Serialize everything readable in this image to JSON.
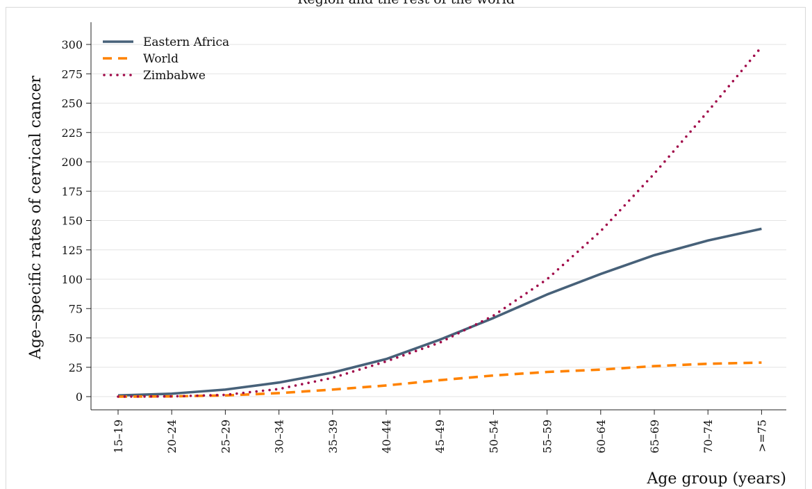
{
  "chart_data": {
    "type": "line",
    "title": "Region and the rest of the world",
    "xlabel": "Age group (years)",
    "ylabel": "Age–specific rates of cervical cancer",
    "categories": [
      "15–19",
      "20–24",
      "25–29",
      "30–34",
      "35–39",
      "40–44",
      "45–49",
      "50–54",
      "55–59",
      "60–64",
      "65–69",
      "70–74",
      ">=75"
    ],
    "ylim": [
      0,
      300
    ],
    "yticks": [
      "0",
      "25",
      "50",
      "75",
      "100",
      "125",
      "150",
      "175",
      "200",
      "225",
      "250",
      "275",
      "300"
    ],
    "grid": true,
    "legend_position": "top-left",
    "series": [
      {
        "name": "Eastern Africa",
        "color": "#476179",
        "style": "solid",
        "values": [
          1,
          2.5,
          6,
          12,
          20.5,
          32,
          48.5,
          67,
          87,
          104.5,
          120.5,
          133,
          143
        ]
      },
      {
        "name": "World",
        "color": "#ff8200",
        "style": "dashed",
        "values": [
          0,
          0.2,
          1,
          3,
          6,
          9.5,
          14,
          18,
          21,
          23,
          26,
          28,
          29
        ]
      },
      {
        "name": "Zimbabwe",
        "color": "#a10b4a",
        "style": "dotted",
        "values": [
          0,
          0.2,
          1.5,
          6.5,
          16,
          30,
          46,
          69,
          100,
          141,
          190,
          243,
          298
        ]
      }
    ]
  }
}
